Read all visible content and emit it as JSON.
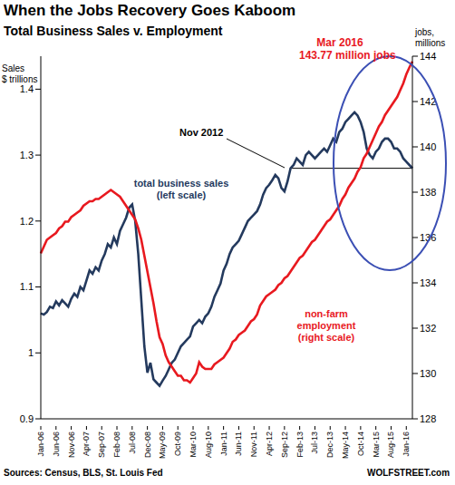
{
  "chart_data": {
    "type": "line",
    "title": "When the Jobs Recovery Goes Kaboom",
    "subtitle": "Total Business Sales v. Employment",
    "ylabel": [
      "Sales",
      "$ trillions"
    ],
    "y2label": [
      "jobs,",
      "millions"
    ],
    "source": "Sources: Census, BLS, St. Louis Fed",
    "credit": "WOLFSTREET.com",
    "grid": false,
    "categories": [
      "Jan-06",
      null,
      null,
      null,
      null,
      "Jun-06",
      null,
      null,
      null,
      null,
      "Nov-06",
      null,
      null,
      null,
      null,
      "Apr-07",
      null,
      null,
      null,
      null,
      "Sep-07",
      null,
      null,
      null,
      null,
      "Feb-08",
      null,
      null,
      null,
      null,
      "Jul-08",
      null,
      null,
      null,
      null,
      "Dec-08",
      null,
      null,
      null,
      null,
      "May-09",
      null,
      null,
      null,
      null,
      "Oct-09",
      null,
      null,
      null,
      null,
      "Mar-10",
      null,
      null,
      null,
      null,
      "Aug-10",
      null,
      null,
      null,
      null,
      "Jan-11",
      null,
      null,
      null,
      null,
      "Jun-11",
      null,
      null,
      null,
      null,
      "Nov-11",
      null,
      null,
      null,
      null,
      "Apr-12",
      null,
      null,
      null,
      null,
      "Sep-12",
      null,
      null,
      null,
      null,
      "Feb-13",
      null,
      null,
      null,
      null,
      "Jul-13",
      null,
      null,
      null,
      null,
      "Dec-13",
      null,
      null,
      null,
      null,
      "May-14",
      null,
      null,
      null,
      null,
      "Oct-14",
      null,
      null,
      null,
      null,
      "Mar-15",
      null,
      null,
      null,
      null,
      "Aug-15",
      null,
      null,
      null,
      null,
      "Jan-16",
      null,
      null
    ],
    "series": [
      {
        "name": "total business sales (left scale)",
        "color": "#243a5e",
        "axis": "y",
        "values": [
          1.06,
          1.058,
          1.062,
          1.07,
          1.068,
          1.078,
          1.072,
          1.08,
          1.075,
          1.07,
          1.082,
          1.09,
          1.085,
          1.1,
          1.095,
          1.11,
          1.125,
          1.12,
          1.13,
          1.125,
          1.14,
          1.15,
          1.165,
          1.16,
          1.175,
          1.165,
          1.185,
          1.195,
          1.205,
          1.22,
          1.225,
          1.2,
          1.15,
          1.08,
          1.01,
          0.97,
          0.985,
          0.96,
          0.955,
          0.95,
          0.958,
          0.965,
          0.975,
          0.985,
          0.99,
          1.0,
          1.01,
          1.015,
          1.02,
          1.025,
          1.04,
          1.045,
          1.05,
          1.045,
          1.055,
          1.06,
          1.07,
          1.085,
          1.095,
          1.105,
          1.125,
          1.135,
          1.15,
          1.16,
          1.165,
          1.17,
          1.18,
          1.19,
          1.2,
          1.205,
          1.21,
          1.215,
          1.225,
          1.24,
          1.25,
          1.255,
          1.262,
          1.27,
          1.265,
          1.25,
          1.245,
          1.26,
          1.28,
          1.285,
          1.295,
          1.29,
          1.285,
          1.3,
          1.305,
          1.3,
          1.295,
          1.3,
          1.305,
          1.31,
          1.305,
          1.315,
          1.325,
          1.32,
          1.335,
          1.34,
          1.35,
          1.355,
          1.36,
          1.365,
          1.36,
          1.35,
          1.335,
          1.31,
          1.3,
          1.295,
          1.305,
          1.31,
          1.32,
          1.325,
          1.325,
          1.32,
          1.31,
          1.31,
          1.305,
          1.295,
          1.29,
          1.285,
          1.28
        ]
      },
      {
        "name": "non-farm employment (right scale)",
        "color": "#e8191f",
        "axis": "y2",
        "values": [
          135.3,
          135.6,
          135.9,
          136.0,
          136.1,
          136.2,
          136.4,
          136.5,
          136.7,
          136.7,
          136.9,
          137.0,
          137.1,
          137.2,
          137.4,
          137.5,
          137.6,
          137.6,
          137.7,
          137.7,
          137.8,
          137.9,
          138.0,
          138.1,
          138.0,
          137.9,
          137.8,
          137.6,
          137.4,
          137.2,
          137.0,
          136.8,
          136.4,
          135.9,
          135.2,
          134.5,
          133.8,
          133.1,
          132.3,
          131.6,
          131.3,
          130.8,
          130.5,
          130.3,
          130.1,
          129.9,
          129.9,
          129.7,
          129.7,
          129.6,
          129.8,
          130.0,
          130.5,
          130.3,
          130.2,
          130.2,
          130.2,
          130.4,
          130.5,
          130.6,
          130.7,
          130.9,
          131.1,
          131.4,
          131.5,
          131.7,
          131.8,
          131.9,
          132.1,
          132.3,
          132.4,
          132.6,
          133.0,
          133.2,
          133.4,
          133.5,
          133.6,
          133.7,
          133.9,
          134.0,
          134.2,
          134.3,
          134.5,
          134.7,
          134.9,
          135.1,
          135.2,
          135.4,
          135.6,
          135.8,
          135.9,
          136.1,
          136.3,
          136.5,
          136.7,
          136.8,
          137.0,
          137.2,
          137.4,
          137.7,
          137.9,
          138.2,
          138.4,
          138.6,
          138.9,
          139.1,
          139.5,
          139.7,
          140.0,
          140.3,
          140.6,
          140.9,
          141.1,
          141.4,
          141.6,
          141.8,
          142.0,
          142.2,
          142.5,
          142.8,
          143.2,
          143.5,
          143.77
        ]
      }
    ],
    "ylim": [
      0.9,
      1.45
    ],
    "yticks": [
      0.9,
      1,
      1.1,
      1.2,
      1.3,
      1.4
    ],
    "y2lim": [
      128,
      144
    ],
    "y2ticks": [
      128,
      130,
      132,
      134,
      136,
      138,
      140,
      142,
      144
    ],
    "annotations": [
      {
        "text": [
          "Nov 2012"
        ],
        "x_index": 82,
        "y": 1.28
      },
      {
        "text": [
          "Mar 2016",
          "143.77 million jobs"
        ],
        "color": "#e8191f"
      }
    ]
  }
}
